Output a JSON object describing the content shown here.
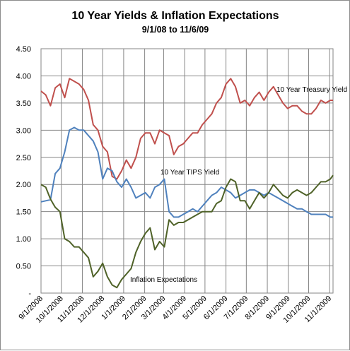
{
  "chart_data": {
    "type": "line",
    "title": "10 Year Yields & Inflation Expectations",
    "subtitle": "9/1/08  to 11/6/09",
    "x_tick_labels": [
      "9/1/2008",
      "10/1/2008",
      "11/1/2008",
      "12/1/2008",
      "1/1/2009",
      "2/1/2009",
      "3/1/2009",
      "4/1/2009",
      "5/1/2009",
      "6/1/2009",
      "7/1/2009",
      "8/1/2009",
      "9/1/2009",
      "10/1/2009",
      "11/1/2009"
    ],
    "y_tick_labels": [
      "-",
      "0.50",
      "1.00",
      "1.50",
      "2.00",
      "2.50",
      "3.00",
      "3.50",
      "4.00",
      "4.50"
    ],
    "ylim": [
      0,
      4.5
    ],
    "grid": true,
    "annotations": {
      "treasury": "10 Year Treasury Yield",
      "tips": "10 Year TIPS Yield",
      "inflation": "Inflation Expectations"
    },
    "x": [
      "2008-09-01",
      "2008-09-08",
      "2008-09-15",
      "2008-09-22",
      "2008-09-29",
      "2008-10-06",
      "2008-10-13",
      "2008-10-20",
      "2008-10-27",
      "2008-11-03",
      "2008-11-10",
      "2008-11-17",
      "2008-11-24",
      "2008-12-01",
      "2008-12-08",
      "2008-12-15",
      "2008-12-22",
      "2008-12-29",
      "2009-01-05",
      "2009-01-12",
      "2009-01-19",
      "2009-01-26",
      "2009-02-02",
      "2009-02-09",
      "2009-02-16",
      "2009-02-23",
      "2009-03-02",
      "2009-03-09",
      "2009-03-16",
      "2009-03-23",
      "2009-03-30",
      "2009-04-06",
      "2009-04-13",
      "2009-04-20",
      "2009-04-27",
      "2009-05-04",
      "2009-05-11",
      "2009-05-18",
      "2009-05-25",
      "2009-06-01",
      "2009-06-08",
      "2009-06-15",
      "2009-06-22",
      "2009-06-29",
      "2009-07-06",
      "2009-07-13",
      "2009-07-20",
      "2009-07-27",
      "2009-08-03",
      "2009-08-10",
      "2009-08-17",
      "2009-08-24",
      "2009-08-31",
      "2009-09-07",
      "2009-09-14",
      "2009-09-21",
      "2009-09-28",
      "2009-10-05",
      "2009-10-12",
      "2009-10-19",
      "2009-10-26",
      "2009-11-02",
      "2009-11-06"
    ],
    "series": [
      {
        "name": "10 Year Treasury Yield",
        "color": "#c0504d",
        "values": [
          3.72,
          3.65,
          3.45,
          3.78,
          3.85,
          3.6,
          3.95,
          3.9,
          3.85,
          3.75,
          3.55,
          3.1,
          3.0,
          2.7,
          2.6,
          2.15,
          2.1,
          2.25,
          2.45,
          2.3,
          2.5,
          2.85,
          2.95,
          2.95,
          2.75,
          3.0,
          2.95,
          2.9,
          2.55,
          2.7,
          2.75,
          2.85,
          2.95,
          2.95,
          3.1,
          3.2,
          3.3,
          3.5,
          3.6,
          3.85,
          3.95,
          3.8,
          3.5,
          3.55,
          3.45,
          3.6,
          3.7,
          3.55,
          3.7,
          3.8,
          3.65,
          3.5,
          3.4,
          3.45,
          3.45,
          3.35,
          3.3,
          3.3,
          3.4,
          3.55,
          3.5,
          3.55,
          3.55
        ]
      },
      {
        "name": "10 Year TIPS Yield",
        "color": "#4f81bd",
        "values": [
          1.68,
          1.7,
          1.72,
          2.2,
          2.3,
          2.6,
          3.0,
          3.05,
          3.0,
          3.0,
          2.9,
          2.8,
          2.6,
          2.1,
          2.3,
          2.25,
          2.05,
          1.95,
          2.1,
          1.95,
          1.75,
          1.8,
          1.85,
          1.75,
          1.95,
          2.0,
          2.1,
          1.5,
          1.4,
          1.4,
          1.45,
          1.5,
          1.55,
          1.5,
          1.6,
          1.7,
          1.8,
          1.85,
          1.95,
          1.9,
          1.85,
          1.75,
          1.8,
          1.85,
          1.9,
          1.9,
          1.85,
          1.8,
          1.85,
          1.8,
          1.75,
          1.7,
          1.65,
          1.6,
          1.55,
          1.55,
          1.5,
          1.45,
          1.45,
          1.45,
          1.45,
          1.4,
          1.4
        ]
      },
      {
        "name": "Inflation Expectations",
        "color": "#4f6228",
        "values": [
          2.0,
          1.95,
          1.73,
          1.58,
          1.5,
          1.0,
          0.95,
          0.85,
          0.85,
          0.75,
          0.65,
          0.3,
          0.4,
          0.55,
          0.3,
          0.15,
          0.1,
          0.25,
          0.35,
          0.45,
          0.75,
          0.95,
          1.1,
          1.2,
          0.8,
          0.95,
          0.85,
          1.35,
          1.25,
          1.3,
          1.3,
          1.35,
          1.4,
          1.45,
          1.5,
          1.5,
          1.5,
          1.65,
          1.7,
          1.95,
          2.1,
          2.05,
          1.7,
          1.7,
          1.55,
          1.7,
          1.85,
          1.75,
          1.85,
          2.0,
          1.9,
          1.8,
          1.75,
          1.85,
          1.9,
          1.85,
          1.8,
          1.85,
          1.95,
          2.05,
          2.05,
          2.1,
          2.17
        ]
      }
    ]
  }
}
